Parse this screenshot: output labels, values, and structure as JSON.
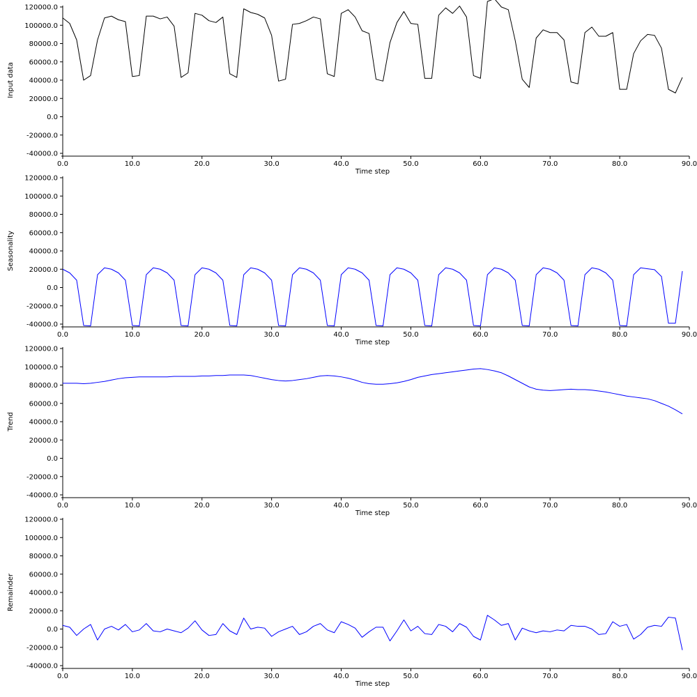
{
  "chart_data": [
    {
      "type": "line",
      "ylabel": "Input data",
      "xlabel": "Time step",
      "xlim": [
        0,
        90
      ],
      "ylim": [
        -40000,
        120000
      ],
      "grid": false,
      "xticks": [
        "0.0",
        "10.0",
        "20.0",
        "30.0",
        "40.0",
        "50.0",
        "60.0",
        "70.0",
        "80.0",
        "90.0"
      ],
      "yticks": [
        "-40000.0",
        "-20000.0",
        "0.0",
        "20000.0",
        "40000.0",
        "60000.0",
        "80000.0",
        "100000.0",
        "120000.0"
      ],
      "color": "#000000",
      "x": [
        0,
        1,
        2,
        3,
        4,
        5,
        6,
        7,
        8,
        9,
        10,
        11,
        12,
        13,
        14,
        15,
        16,
        17,
        18,
        19,
        20,
        21,
        22,
        23,
        24,
        25,
        26,
        27,
        28,
        29,
        30,
        31,
        32,
        33,
        34,
        35,
        36,
        37,
        38,
        39,
        40,
        41,
        42,
        43,
        44,
        45,
        46,
        47,
        48,
        49,
        50,
        51,
        52,
        53,
        54,
        55,
        56,
        57,
        58,
        59,
        60,
        61,
        62,
        63,
        64,
        65,
        66,
        67,
        68,
        69,
        70,
        71,
        72,
        73,
        74,
        75,
        76,
        77,
        78,
        79,
        80,
        81,
        82,
        83,
        84,
        85,
        86,
        87,
        88,
        89
      ],
      "values": [
        108000,
        102000,
        84000,
        40000,
        45000,
        84000,
        108000,
        110000,
        106000,
        104000,
        44000,
        45000,
        110000,
        110000,
        107000,
        109000,
        99000,
        43000,
        48000,
        113000,
        111000,
        105000,
        103000,
        109000,
        47000,
        43000,
        118000,
        114000,
        112000,
        108000,
        89000,
        39000,
        41000,
        101000,
        102000,
        105000,
        109000,
        107000,
        47000,
        44000,
        113000,
        117000,
        109000,
        94000,
        91000,
        41000,
        39000,
        81000,
        103000,
        115000,
        102000,
        101000,
        42000,
        42000,
        111000,
        119000,
        113000,
        121000,
        109000,
        45000,
        42000,
        126000,
        129000,
        120000,
        117000,
        83000,
        41000,
        32000,
        86000,
        95000,
        92000,
        92000,
        84000,
        38000,
        36000,
        92000,
        98000,
        88000,
        88000,
        92000,
        30000,
        30000,
        69000,
        83000,
        90000,
        89000,
        75000,
        30000,
        26000,
        43000
      ]
    },
    {
      "type": "line",
      "ylabel": "Seasonality",
      "xlabel": "Time step",
      "xlim": [
        0,
        90
      ],
      "ylim": [
        -40000,
        120000
      ],
      "grid": false,
      "xticks": [
        "0.0",
        "10.0",
        "20.0",
        "30.0",
        "40.0",
        "50.0",
        "60.0",
        "70.0",
        "80.0",
        "90.0"
      ],
      "yticks": [
        "-40000.0",
        "-20000.0",
        "0.0",
        "20000.0",
        "40000.0",
        "60000.0",
        "80000.0",
        "100000.0",
        "120000.0"
      ],
      "color": "#0000ff",
      "x": [
        0,
        1,
        2,
        3,
        4,
        5,
        6,
        7,
        8,
        9,
        10,
        11,
        12,
        13,
        14,
        15,
        16,
        17,
        18,
        19,
        20,
        21,
        22,
        23,
        24,
        25,
        26,
        27,
        28,
        29,
        30,
        31,
        32,
        33,
        34,
        35,
        36,
        37,
        38,
        39,
        40,
        41,
        42,
        43,
        44,
        45,
        46,
        47,
        48,
        49,
        50,
        51,
        52,
        53,
        54,
        55,
        56,
        57,
        58,
        59,
        60,
        61,
        62,
        63,
        64,
        65,
        66,
        67,
        68,
        69,
        70,
        71,
        72,
        73,
        74,
        75,
        76,
        77,
        78,
        79,
        80,
        81,
        82,
        83,
        84,
        85,
        86,
        87,
        88,
        89
      ],
      "values": [
        20000,
        16000,
        8000,
        -41500,
        -42000,
        14000,
        21500,
        20000,
        16000,
        8000,
        -41500,
        -42000,
        14000,
        21500,
        20000,
        16000,
        8000,
        -41500,
        -42000,
        14000,
        21500,
        20000,
        16000,
        8000,
        -41500,
        -42000,
        14000,
        21500,
        20000,
        16000,
        8000,
        -41500,
        -42000,
        14000,
        21500,
        20000,
        16000,
        8000,
        -41500,
        -42000,
        14000,
        21500,
        20000,
        16000,
        8000,
        -41500,
        -42000,
        14000,
        21500,
        20000,
        16000,
        8000,
        -41500,
        -42000,
        14000,
        21500,
        20000,
        16000,
        8000,
        -41500,
        -42000,
        14000,
        21500,
        20000,
        16000,
        8000,
        -41500,
        -42000,
        14000,
        21500,
        20000,
        16000,
        8000,
        -41500,
        -42000,
        14000,
        21500,
        20000,
        16000,
        8000,
        -41500,
        -42000,
        14000,
        21500,
        20500,
        19500,
        12000,
        -39000,
        -39000,
        18000
      ]
    },
    {
      "type": "line",
      "ylabel": "Trend",
      "xlabel": "Time step",
      "xlim": [
        0,
        90
      ],
      "ylim": [
        -40000,
        120000
      ],
      "grid": false,
      "xticks": [
        "0.0",
        "10.0",
        "20.0",
        "30.0",
        "40.0",
        "50.0",
        "60.0",
        "70.0",
        "80.0",
        "90.0"
      ],
      "yticks": [
        "-40000.0",
        "-20000.0",
        "0.0",
        "20000.0",
        "40000.0",
        "60000.0",
        "80000.0",
        "100000.0",
        "120000.0"
      ],
      "color": "#0000ff",
      "x": [
        0,
        1,
        2,
        3,
        4,
        5,
        6,
        7,
        8,
        9,
        10,
        11,
        12,
        13,
        14,
        15,
        16,
        17,
        18,
        19,
        20,
        21,
        22,
        23,
        24,
        25,
        26,
        27,
        28,
        29,
        30,
        31,
        32,
        33,
        34,
        35,
        36,
        37,
        38,
        39,
        40,
        41,
        42,
        43,
        44,
        45,
        46,
        47,
        48,
        49,
        50,
        51,
        52,
        53,
        54,
        55,
        56,
        57,
        58,
        59,
        60,
        61,
        62,
        63,
        64,
        65,
        66,
        67,
        68,
        69,
        70,
        71,
        72,
        73,
        74,
        75,
        76,
        77,
        78,
        79,
        80,
        81,
        82,
        83,
        84,
        85,
        86,
        87,
        88,
        89
      ],
      "values": [
        82000,
        82000,
        82000,
        81500,
        82000,
        83000,
        84000,
        85500,
        87000,
        88000,
        88500,
        89000,
        89000,
        89000,
        89000,
        89000,
        89500,
        89500,
        89500,
        89500,
        90000,
        90000,
        90500,
        90500,
        91000,
        91000,
        91000,
        90500,
        89000,
        87500,
        86000,
        85000,
        84500,
        85000,
        86000,
        87000,
        88500,
        90000,
        90500,
        90000,
        89000,
        87500,
        85500,
        83000,
        81500,
        81000,
        81000,
        81500,
        82500,
        84000,
        86000,
        88500,
        90000,
        91500,
        92500,
        93500,
        94500,
        95500,
        96500,
        97500,
        98000,
        97000,
        95500,
        93500,
        90000,
        86000,
        82000,
        78000,
        75500,
        74500,
        74000,
        74500,
        75000,
        75500,
        75000,
        75000,
        74500,
        73500,
        72500,
        71000,
        69500,
        68000,
        67000,
        66000,
        65000,
        63000,
        60000,
        57000,
        53000,
        48500
      ]
    },
    {
      "type": "line",
      "ylabel": "Remainder",
      "xlabel": "Time step",
      "xlim": [
        0,
        90
      ],
      "ylim": [
        -40000,
        120000
      ],
      "grid": false,
      "xticks": [
        "0.0",
        "10.0",
        "20.0",
        "30.0",
        "40.0",
        "50.0",
        "60.0",
        "70.0",
        "80.0",
        "90.0"
      ],
      "yticks": [
        "-40000.0",
        "-20000.0",
        "0.0",
        "20000.0",
        "40000.0",
        "60000.0",
        "80000.0",
        "100000.0",
        "120000.0"
      ],
      "color": "#0000ff",
      "x": [
        0,
        1,
        2,
        3,
        4,
        5,
        6,
        7,
        8,
        9,
        10,
        11,
        12,
        13,
        14,
        15,
        16,
        17,
        18,
        19,
        20,
        21,
        22,
        23,
        24,
        25,
        26,
        27,
        28,
        29,
        30,
        31,
        32,
        33,
        34,
        35,
        36,
        37,
        38,
        39,
        40,
        41,
        42,
        43,
        44,
        45,
        46,
        47,
        48,
        49,
        50,
        51,
        52,
        53,
        54,
        55,
        56,
        57,
        58,
        59,
        60,
        61,
        62,
        63,
        64,
        65,
        66,
        67,
        68,
        69,
        70,
        71,
        72,
        73,
        74,
        75,
        76,
        77,
        78,
        79,
        80,
        81,
        82,
        83,
        84,
        85,
        86,
        87,
        88,
        89
      ],
      "values": [
        4000,
        2000,
        -7000,
        0,
        5000,
        -12000,
        0,
        3000,
        -1000,
        5000,
        -3000,
        -1000,
        6000,
        -2000,
        -3000,
        0,
        -2000,
        -4000,
        1000,
        9000,
        -1000,
        -7000,
        -6000,
        6000,
        -2000,
        -6000,
        12000,
        0,
        2000,
        1000,
        -8000,
        -3000,
        0,
        3000,
        -6000,
        -3000,
        3000,
        6000,
        -1000,
        -4000,
        8000,
        5000,
        1000,
        -9000,
        -3000,
        2000,
        2000,
        -13000,
        -2000,
        10000,
        -2000,
        3000,
        -5000,
        -6000,
        5000,
        3000,
        -3000,
        6000,
        2000,
        -8000,
        -12000,
        15000,
        10000,
        4000,
        6000,
        -12000,
        1000,
        -2000,
        -4000,
        -2000,
        -3000,
        -1000,
        -2000,
        4000,
        3000,
        3000,
        0,
        -6000,
        -5000,
        8000,
        3000,
        5000,
        -11000,
        -6000,
        2000,
        4000,
        3000,
        13000,
        12000,
        -23000
      ]
    }
  ]
}
